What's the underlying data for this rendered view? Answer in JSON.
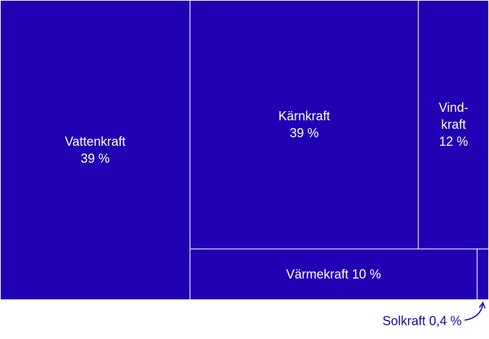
{
  "chart_data": {
    "type": "treemap",
    "title": "",
    "colors": {
      "tile_fill": "#2200b3",
      "tile_border": "#ffffff",
      "label": "#ffffff",
      "outside_label": "#2200aa"
    },
    "items": [
      {
        "name": "Vattenkraft",
        "value": 39,
        "label_lines": [
          "Vattenkraft",
          "39 %"
        ]
      },
      {
        "name": "Kärnkraft",
        "value": 39,
        "label_lines": [
          "Kärnkraft",
          "39 %"
        ]
      },
      {
        "name": "Vindkraft",
        "value": 12,
        "label_lines": [
          "Vind-",
          "kraft",
          "12 %"
        ]
      },
      {
        "name": "Värmekraft",
        "value": 10,
        "label_lines": [
          "Värmekraft 10 %"
        ]
      },
      {
        "name": "Solkraft",
        "value": 0.4,
        "label_lines": [
          "Solkraft 0,4 %"
        ],
        "label_outside": true
      }
    ]
  }
}
